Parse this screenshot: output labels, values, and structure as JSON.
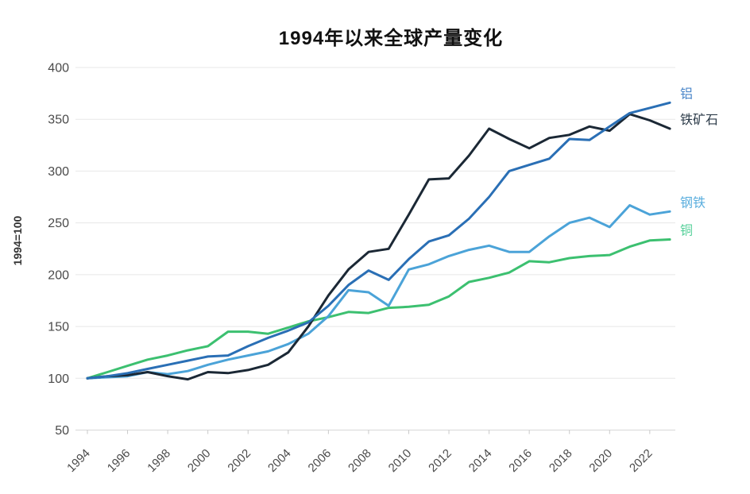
{
  "chart_data": {
    "type": "line",
    "title": "1994年以来全球产量变化",
    "ylabel": "1994=100",
    "xlabel": "",
    "x": [
      1994,
      1995,
      1996,
      1997,
      1998,
      1999,
      2000,
      2001,
      2002,
      2003,
      2004,
      2005,
      2006,
      2007,
      2008,
      2009,
      2010,
      2011,
      2012,
      2013,
      2014,
      2015,
      2016,
      2017,
      2018,
      2019,
      2020,
      2021,
      2022,
      2023
    ],
    "x_tick_labels": [
      "1994",
      "1996",
      "1998",
      "2000",
      "2002",
      "2004",
      "2006",
      "2008",
      "2010",
      "2012",
      "2014",
      "2016",
      "2018",
      "2020",
      "2022"
    ],
    "y_ticks": [
      400,
      350,
      300,
      250,
      200,
      150,
      100,
      50
    ],
    "ylim": [
      50,
      400
    ],
    "grid": "horizontal",
    "legend_position": "right-end-labels",
    "series": [
      {
        "key": "copper",
        "name": "铜",
        "color": "#3cc070",
        "label_color": "#56d09a",
        "values": [
          100,
          106,
          112,
          118,
          122,
          127,
          131,
          145,
          145,
          143,
          149,
          155,
          159,
          164,
          163,
          168,
          169,
          171,
          179,
          193,
          197,
          202,
          213,
          212,
          216,
          218,
          219,
          227,
          233,
          234
        ]
      },
      {
        "key": "steel",
        "name": "钢铁",
        "color": "#4ba3d8",
        "label_color": "#5aaede",
        "values": [
          100,
          101,
          102,
          106,
          104,
          107,
          113,
          118,
          122,
          126,
          133,
          143,
          160,
          185,
          183,
          170,
          205,
          210,
          218,
          224,
          228,
          222,
          222,
          237,
          250,
          255,
          246,
          267,
          258,
          261
        ]
      },
      {
        "key": "iron-ore",
        "name": "铁矿石",
        "color": "#1b2835",
        "label_color": "#2b3a48",
        "values": [
          100,
          102,
          103,
          106,
          102,
          99,
          106,
          105,
          108,
          113,
          125,
          150,
          180,
          205,
          222,
          225,
          258,
          292,
          293,
          315,
          341,
          331,
          322,
          332,
          335,
          343,
          339,
          355,
          349,
          341
        ]
      },
      {
        "key": "aluminum",
        "name": "铝",
        "color": "#2a6fb5",
        "label_color": "#4a86c9",
        "values": [
          100,
          102,
          105,
          109,
          113,
          117,
          121,
          122,
          131,
          139,
          146,
          154,
          170,
          190,
          204,
          195,
          215,
          232,
          238,
          254,
          275,
          300,
          306,
          312,
          331,
          330,
          343,
          356,
          361,
          366
        ]
      }
    ],
    "style": {
      "grid_color": "#e7e7e7",
      "axis_line_color": "#d8d8d8",
      "tick_color": "#c9c9c9",
      "tick_label_color": "#4a4a4a",
      "background": "#ffffff"
    }
  }
}
